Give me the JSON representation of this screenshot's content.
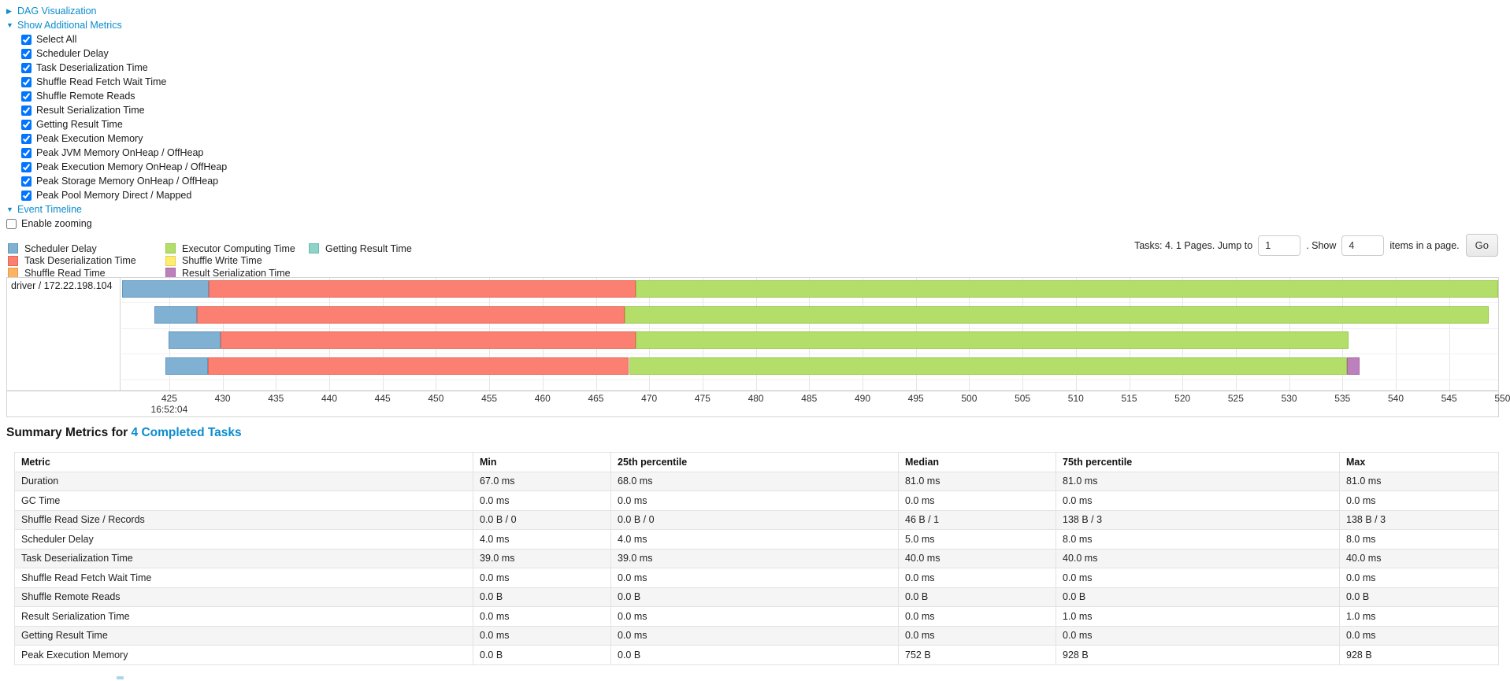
{
  "controls": {
    "dag_label": "DAG Visualization",
    "metrics_label": "Show Additional Metrics",
    "timeline_label": "Event Timeline",
    "enable_zooming_label": "Enable zooming",
    "enable_zooming_checked": false,
    "metric_options": [
      {
        "label": "Select All",
        "checked": true
      },
      {
        "label": "Scheduler Delay",
        "checked": true
      },
      {
        "label": "Task Deserialization Time",
        "checked": true
      },
      {
        "label": "Shuffle Read Fetch Wait Time",
        "checked": true
      },
      {
        "label": "Shuffle Remote Reads",
        "checked": true
      },
      {
        "label": "Result Serialization Time",
        "checked": true
      },
      {
        "label": "Getting Result Time",
        "checked": true
      },
      {
        "label": "Peak Execution Memory",
        "checked": true
      },
      {
        "label": "Peak JVM Memory OnHeap / OffHeap",
        "checked": true
      },
      {
        "label": "Peak Execution Memory OnHeap / OffHeap",
        "checked": true
      },
      {
        "label": "Peak Storage Memory OnHeap / OffHeap",
        "checked": true
      },
      {
        "label": "Peak Pool Memory Direct / Mapped",
        "checked": true
      }
    ]
  },
  "legend": [
    {
      "label": "Scheduler Delay",
      "color": "#80B1D3",
      "border": "#6295BD"
    },
    {
      "label": "Task Deserialization Time",
      "color": "#FB8072",
      "border": "#E86456"
    },
    {
      "label": "Shuffle Read Time",
      "color": "#FDB462",
      "border": "#E89A43"
    },
    {
      "label": "Executor Computing Time",
      "color": "#B3DE69",
      "border": "#99C84B"
    },
    {
      "label": "Shuffle Write Time",
      "color": "#FFED6F",
      "border": "#E3D054"
    },
    {
      "label": "Result Serialization Time",
      "color": "#BC80BD",
      "border": "#A365A4"
    },
    {
      "label": "Getting Result Time",
      "color": "#8DD3C7",
      "border": "#6FBCAE"
    }
  ],
  "pagination": {
    "prefix": "Tasks: 4. 1 Pages. Jump to",
    "jump_value": "1",
    "show_label": ". Show",
    "show_value": "4",
    "suffix": "items in a page.",
    "go_label": "Go"
  },
  "chart_data": {
    "type": "timeline",
    "group_label": "driver / 172.22.198.104",
    "x_axis": {
      "start_time_label": "16:52:04",
      "unit": "ms after 16:52:04",
      "tick_min": 425,
      "tick_max": 550,
      "tick_step": 5,
      "view_min": 420.5,
      "view_max": 549.6
    },
    "segment_colors": {
      "scheduler_delay": {
        "fill": "#80B1D3",
        "border": "#6295BD"
      },
      "task_deserialization": {
        "fill": "#FB8072",
        "border": "#E86456"
      },
      "shuffle_read": {
        "fill": "#FDB462",
        "border": "#E89A43"
      },
      "executor_computing": {
        "fill": "#B3DE69",
        "border": "#99C84B"
      },
      "shuffle_write": {
        "fill": "#FFED6F",
        "border": "#E3D054"
      },
      "result_serialization": {
        "fill": "#BC80BD",
        "border": "#A365A4"
      },
      "getting_result": {
        "fill": "#8DD3C7",
        "border": "#6FBCAE"
      }
    },
    "tasks": [
      {
        "segments": [
          {
            "type": "scheduler_delay",
            "start": 420.6,
            "end": 428.7
          },
          {
            "type": "task_deserialization",
            "start": 428.7,
            "end": 468.7
          },
          {
            "type": "executor_computing",
            "start": 468.7,
            "end": 549.6
          }
        ]
      },
      {
        "segments": [
          {
            "type": "scheduler_delay",
            "start": 423.6,
            "end": 427.6
          },
          {
            "type": "task_deserialization",
            "start": 427.6,
            "end": 467.7
          },
          {
            "type": "executor_computing",
            "start": 467.7,
            "end": 548.7
          }
        ]
      },
      {
        "segments": [
          {
            "type": "scheduler_delay",
            "start": 424.9,
            "end": 429.8
          },
          {
            "type": "task_deserialization",
            "start": 429.8,
            "end": 468.7
          },
          {
            "type": "executor_computing",
            "start": 468.7,
            "end": 535.6
          }
        ]
      },
      {
        "segments": [
          {
            "type": "scheduler_delay",
            "start": 424.6,
            "end": 428.6
          },
          {
            "type": "task_deserialization",
            "start": 428.6,
            "end": 468.1
          },
          {
            "type": "executor_computing",
            "start": 468.1,
            "end": 535.4
          },
          {
            "type": "result_serialization",
            "start": 535.4,
            "end": 536.6
          }
        ]
      }
    ]
  },
  "summary": {
    "heading_prefix": "Summary Metrics for",
    "heading_link": "4 Completed Tasks",
    "columns": [
      "Metric",
      "Min",
      "25th percentile",
      "Median",
      "75th percentile",
      "Max"
    ],
    "rows": [
      {
        "metric": "Duration",
        "values": [
          "67.0 ms",
          "68.0 ms",
          "81.0 ms",
          "81.0 ms",
          "81.0 ms"
        ]
      },
      {
        "metric": "GC Time",
        "values": [
          "0.0 ms",
          "0.0 ms",
          "0.0 ms",
          "0.0 ms",
          "0.0 ms"
        ]
      },
      {
        "metric": "Shuffle Read Size / Records",
        "values": [
          "0.0 B / 0",
          "0.0 B / 0",
          "46 B / 1",
          "138 B / 3",
          "138 B / 3"
        ]
      },
      {
        "metric": "Scheduler Delay",
        "values": [
          "4.0 ms",
          "4.0 ms",
          "5.0 ms",
          "8.0 ms",
          "8.0 ms"
        ]
      },
      {
        "metric": "Task Deserialization Time",
        "values": [
          "39.0 ms",
          "39.0 ms",
          "40.0 ms",
          "40.0 ms",
          "40.0 ms"
        ]
      },
      {
        "metric": "Shuffle Read Fetch Wait Time",
        "values": [
          "0.0 ms",
          "0.0 ms",
          "0.0 ms",
          "0.0 ms",
          "0.0 ms"
        ]
      },
      {
        "metric": "Shuffle Remote Reads",
        "values": [
          "0.0 B",
          "0.0 B",
          "0.0 B",
          "0.0 B",
          "0.0 B"
        ]
      },
      {
        "metric": "Result Serialization Time",
        "values": [
          "0.0 ms",
          "0.0 ms",
          "0.0 ms",
          "1.0 ms",
          "1.0 ms"
        ]
      },
      {
        "metric": "Getting Result Time",
        "values": [
          "0.0 ms",
          "0.0 ms",
          "0.0 ms",
          "0.0 ms",
          "0.0 ms"
        ]
      },
      {
        "metric": "Peak Execution Memory",
        "values": [
          "0.0 B",
          "0.0 B",
          "752 B",
          "928 B",
          "928 B"
        ]
      }
    ]
  }
}
